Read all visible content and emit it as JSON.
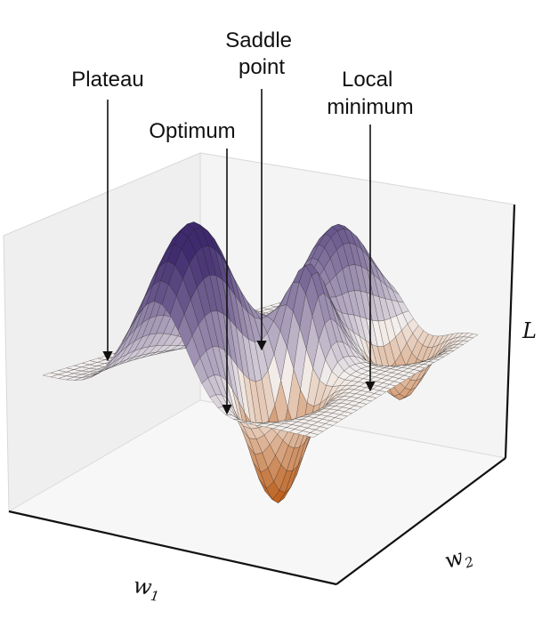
{
  "annotations": {
    "plateau": "Plateau",
    "optimum": "Optimum",
    "saddle_line1": "Saddle",
    "saddle_line2": "point",
    "local_line1": "Local",
    "local_line2": "minimum"
  },
  "axes": {
    "w1_base": "w",
    "w1_sub": "1",
    "w2_base": "w",
    "w2_sub": "2",
    "l": "L"
  },
  "colors": {
    "high": "#3f2a6e",
    "mid": "#f4f0ee",
    "low": "#b9560f",
    "mesh": "#1c1c1c",
    "pane_left": "#f0f0f0",
    "pane_back": "#f5f5f5",
    "pane_floor": "#f8f8f8"
  }
}
